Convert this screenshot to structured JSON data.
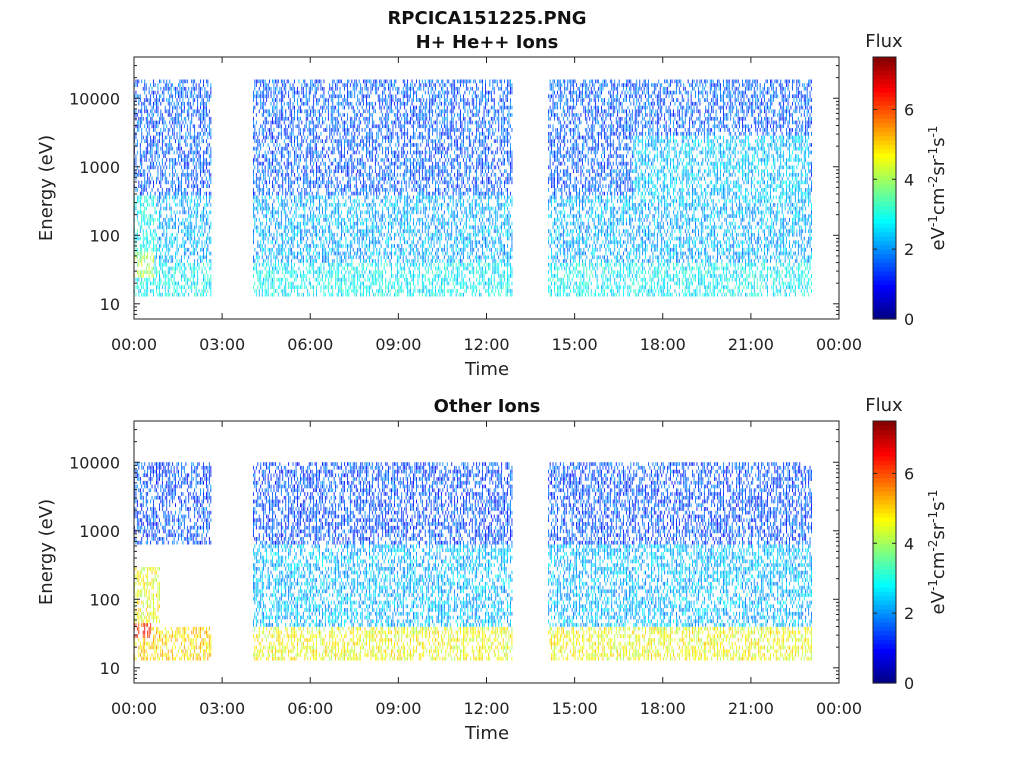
{
  "chart_data": [
    {
      "type": "heatmap",
      "title": "RPCICA151225.PNG",
      "subtitle": "H+ He++ Ions",
      "xlabel": "Time",
      "ylabel": "Energy (eV)",
      "x_ticks": [
        "00:00",
        "03:00",
        "06:00",
        "09:00",
        "12:00",
        "15:00",
        "18:00",
        "21:00",
        "00:00"
      ],
      "y_ticks": [
        {
          "value": 10,
          "label": "10"
        },
        {
          "value": 100,
          "label": "100"
        },
        {
          "value": 1000,
          "label": "1000"
        },
        {
          "value": 10000,
          "label": "10000"
        }
      ],
      "x_range_hours": [
        0,
        24
      ],
      "y_range": [
        6,
        40000
      ],
      "y_scale": "log",
      "data_gaps_hours": [
        [
          2.6,
          4.0
        ],
        [
          12.9,
          14.1
        ]
      ],
      "data_end_hours": 23.1,
      "colorbar": {
        "title": "Flux",
        "label": "eV-1cm-2sr-1s-1",
        "range": [
          0,
          7.5
        ],
        "ticks": [
          "0",
          "2",
          "4",
          "6"
        ],
        "colormap": "jet"
      },
      "features": [
        {
          "t_start": 0,
          "t_end": 0.7,
          "e_low": 25,
          "e_high": 60,
          "flux": 4.0
        },
        {
          "t_start": 0,
          "t_end": 0.8,
          "e_low": 60,
          "e_high": 400,
          "flux": 2.8
        },
        {
          "t_start": 0,
          "t_end": 23.1,
          "e_low": 12,
          "e_high": 40,
          "flux": 2.8
        },
        {
          "t_start": 0,
          "t_end": 23.1,
          "e_low": 40,
          "e_high": 400,
          "flux": 2.2
        },
        {
          "t_start": 0,
          "t_end": 23.1,
          "e_low": 400,
          "e_high": 20000,
          "flux": 1.6
        },
        {
          "t_start": 17,
          "t_end": 23,
          "e_low": 300,
          "e_high": 3000,
          "flux": 2.4
        }
      ]
    },
    {
      "type": "heatmap",
      "title": "Other Ions",
      "xlabel": "Time",
      "ylabel": "Energy (eV)",
      "x_ticks": [
        "00:00",
        "03:00",
        "06:00",
        "09:00",
        "12:00",
        "15:00",
        "18:00",
        "21:00",
        "00:00"
      ],
      "y_ticks": [
        {
          "value": 10,
          "label": "10"
        },
        {
          "value": 100,
          "label": "100"
        },
        {
          "value": 1000,
          "label": "1000"
        },
        {
          "value": 10000,
          "label": "10000"
        }
      ],
      "x_range_hours": [
        0,
        24
      ],
      "y_range": [
        6,
        40000
      ],
      "y_scale": "log",
      "data_gaps_hours": [
        [
          2.6,
          4.0
        ],
        [
          12.9,
          14.1
        ]
      ],
      "data_end_hours": 23.1,
      "colorbar": {
        "title": "Flux",
        "label": "eV-1cm-2sr-1s-1",
        "range": [
          0,
          7.5
        ],
        "ticks": [
          "0",
          "2",
          "4",
          "6"
        ],
        "colormap": "jet"
      },
      "features": [
        {
          "t_start": 0,
          "t_end": 0.6,
          "e_low": 28,
          "e_high": 45,
          "flux": 6.3
        },
        {
          "t_start": 0,
          "t_end": 0.9,
          "e_low": 45,
          "e_high": 300,
          "flux": 4.6
        },
        {
          "t_start": 0,
          "t_end": 2.6,
          "e_low": 12,
          "e_high": 40,
          "flux": 5.0
        },
        {
          "t_start": 4.0,
          "t_end": 23.1,
          "e_low": 12,
          "e_high": 40,
          "flux": 4.6
        },
        {
          "t_start": 4.0,
          "t_end": 23.1,
          "e_low": 40,
          "e_high": 600,
          "flux": 2.3
        },
        {
          "t_start": 0,
          "t_end": 23.1,
          "e_low": 600,
          "e_high": 10000,
          "flux": 1.5
        }
      ]
    }
  ]
}
